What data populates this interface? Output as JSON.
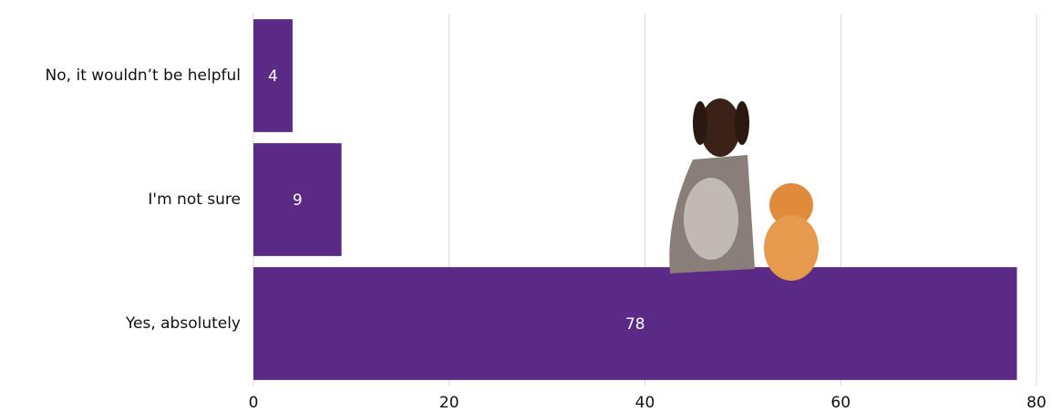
{
  "chart_data": {
    "type": "bar",
    "orientation": "horizontal",
    "categories": [
      "No, it wouldn’t be helpful",
      "I'm not sure",
      "Yes, absolutely"
    ],
    "values": [
      4,
      9,
      78
    ],
    "color": "#5b2a86",
    "xlim": [
      0,
      80
    ],
    "xticks": [
      0,
      20,
      40,
      60,
      80
    ],
    "grid": true
  }
}
